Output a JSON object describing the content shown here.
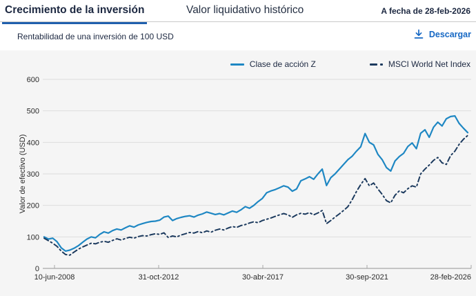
{
  "tabs": [
    {
      "label": "Crecimiento de la inversión",
      "active": true
    },
    {
      "label": "Valor liquidativo histórico",
      "active": false
    }
  ],
  "as_of": "A fecha de 28-feb-2026",
  "subtitle": "Rentabilidad de una inversión de 100 USD",
  "download": {
    "label": "Descargar",
    "icon": "download-icon"
  },
  "colors": {
    "accent_blue": "#1668c4",
    "tab_underline": "#1f5fad",
    "series_solid": "#1e87c3",
    "series_dashed": "#1c3a5e",
    "panel_bg": "#f5f5f5",
    "grid": "#dcdcdc",
    "axis": "#a6a6a6",
    "text_dark": "#1b2740",
    "axis_text": "#2a2a2a"
  },
  "chart_data": {
    "type": "line",
    "title": "Crecimiento de la inversión",
    "xlabel": "",
    "ylabel": "Valor de efectivo (USD)",
    "y_ticks": [
      0,
      100,
      200,
      300,
      400,
      500,
      600
    ],
    "ylim": [
      0,
      650
    ],
    "x_tick_labels": [
      "10-jun-2008",
      "31-oct-2012",
      "30-abr-2017",
      "30-sep-2021",
      "28-feb-2026"
    ],
    "grid": "horizontal",
    "legend_position": "top-right",
    "series": [
      {
        "name": "Clase de acción Z",
        "style": "solid",
        "color": "#1e87c3",
        "values": [
          100,
          93,
          96,
          85,
          65,
          55,
          58,
          64,
          72,
          83,
          93,
          100,
          97,
          108,
          116,
          112,
          120,
          125,
          122,
          129,
          135,
          131,
          138,
          142,
          146,
          149,
          150,
          153,
          163,
          166,
          152,
          158,
          162,
          165,
          167,
          163,
          169,
          173,
          179,
          175,
          171,
          174,
          170,
          176,
          182,
          178,
          186,
          196,
          191,
          200,
          212,
          222,
          240,
          246,
          250,
          256,
          262,
          258,
          245,
          252,
          278,
          284,
          291,
          283,
          300,
          315,
          263,
          288,
          300,
          315,
          330,
          345,
          356,
          372,
          386,
          428,
          400,
          392,
          362,
          345,
          320,
          309,
          341,
          355,
          365,
          387,
          398,
          380,
          429,
          440,
          416,
          448,
          464,
          452,
          475,
          482,
          484,
          460,
          445,
          431
        ]
      },
      {
        "name": "MSCI World Net Index",
        "style": "dashed",
        "color": "#1c3a5e",
        "values": [
          96,
          88,
          80,
          70,
          55,
          44,
          42,
          52,
          61,
          68,
          74,
          80,
          78,
          83,
          86,
          83,
          89,
          94,
          90,
          95,
          99,
          96,
          101,
          104,
          103,
          107,
          110,
          108,
          113,
          98,
          103,
          100,
          106,
          110,
          114,
          112,
          117,
          113,
          119,
          115,
          121,
          125,
          122,
          128,
          133,
          130,
          136,
          139,
          144,
          148,
          145,
          152,
          156,
          160,
          165,
          170,
          174,
          170,
          162,
          170,
          175,
          172,
          177,
          170,
          176,
          184,
          142,
          152,
          163,
          173,
          184,
          196,
          218,
          244,
          266,
          285,
          262,
          271,
          252,
          235,
          215,
          208,
          232,
          246,
          240,
          253,
          262,
          258,
          300,
          315,
          328,
          343,
          352,
          335,
          330,
          358,
          372,
          394,
          410,
          422
        ]
      }
    ]
  }
}
